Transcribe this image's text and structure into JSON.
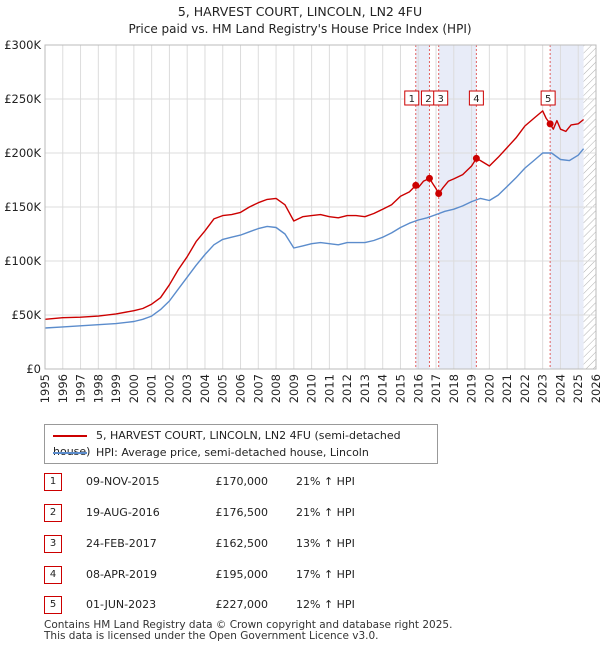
{
  "chart_data": {
    "type": "line",
    "title": "5, HARVEST COURT, LINCOLN, LN2 4FU",
    "subtitle": "Price paid vs. HM Land Registry's House Price Index (HPI)",
    "xlabel": "",
    "ylabel": "",
    "xlim": [
      1995,
      2026
    ],
    "ylim": [
      0,
      300000
    ],
    "y_ticks": [
      0,
      50000,
      100000,
      150000,
      200000,
      250000,
      300000
    ],
    "y_tick_labels": [
      "£0",
      "£50K",
      "£100K",
      "£150K",
      "£200K",
      "£250K",
      "£300K"
    ],
    "x_ticks": [
      1995,
      1996,
      1997,
      1998,
      1999,
      2000,
      2001,
      2002,
      2003,
      2004,
      2005,
      2006,
      2007,
      2008,
      2009,
      2010,
      2011,
      2012,
      2013,
      2014,
      2015,
      2016,
      2017,
      2018,
      2019,
      2020,
      2021,
      2022,
      2023,
      2024,
      2025,
      2026
    ],
    "grid": true,
    "colors": {
      "property": "#cc0000",
      "hpi": "#5b8ccc",
      "shade": "#e8ecf8",
      "hatch": "#b0b0b0"
    },
    "series": [
      {
        "name": "5, HARVEST COURT, LINCOLN, LN2 4FU (semi-detached house)",
        "color": "#cc0000",
        "x": [
          1995.0,
          1996.0,
          1997.0,
          1998.0,
          1999.0,
          2000.0,
          2000.5,
          2001.0,
          2001.5,
          2002.0,
          2002.5,
          2003.0,
          2003.5,
          2004.0,
          2004.5,
          2005.0,
          2005.5,
          2006.0,
          2006.5,
          2007.0,
          2007.5,
          2008.0,
          2008.5,
          2009.0,
          2009.5,
          2010.0,
          2010.5,
          2011.0,
          2011.5,
          2012.0,
          2012.5,
          2013.0,
          2013.5,
          2014.0,
          2014.5,
          2015.0,
          2015.5,
          2015.86,
          2016.0,
          2016.3,
          2016.63,
          2016.8,
          2017.0,
          2017.15,
          2017.4,
          2017.7,
          2018.0,
          2018.5,
          2019.0,
          2019.27,
          2019.5,
          2020.0,
          2020.5,
          2021.0,
          2021.5,
          2022.0,
          2022.5,
          2023.0,
          2023.2,
          2023.42,
          2023.6,
          2023.8,
          2024.0,
          2024.3,
          2024.6,
          2025.0,
          2025.3
        ],
        "y": [
          46000,
          47500,
          48000,
          49000,
          51000,
          54000,
          56000,
          60000,
          66000,
          78000,
          92000,
          104000,
          118000,
          128000,
          139000,
          142000,
          143000,
          145000,
          150000,
          154000,
          157000,
          158000,
          152000,
          137000,
          141000,
          142000,
          143000,
          141000,
          140000,
          142000,
          142000,
          141000,
          144000,
          148000,
          152000,
          160000,
          164000,
          170000,
          168000,
          174000,
          176500,
          172000,
          167000,
          162500,
          168000,
          174000,
          176000,
          180000,
          188000,
          195000,
          193000,
          188000,
          196000,
          205000,
          214000,
          225000,
          232000,
          239000,
          232000,
          227000,
          222000,
          230000,
          222000,
          220000,
          226000,
          227000,
          231000
        ]
      },
      {
        "name": "HPI: Average price, semi-detached house, Lincoln",
        "color": "#5b8ccc",
        "x": [
          1995.0,
          1996.0,
          1997.0,
          1998.0,
          1999.0,
          2000.0,
          2000.5,
          2001.0,
          2001.5,
          2002.0,
          2002.5,
          2003.0,
          2003.5,
          2004.0,
          2004.5,
          2005.0,
          2005.5,
          2006.0,
          2006.5,
          2007.0,
          2007.5,
          2008.0,
          2008.5,
          2009.0,
          2009.5,
          2010.0,
          2010.5,
          2011.0,
          2011.5,
          2012.0,
          2012.5,
          2013.0,
          2013.5,
          2014.0,
          2014.5,
          2015.0,
          2015.5,
          2016.0,
          2016.5,
          2017.0,
          2017.5,
          2018.0,
          2018.5,
          2019.0,
          2019.5,
          2020.0,
          2020.5,
          2021.0,
          2021.5,
          2022.0,
          2022.5,
          2023.0,
          2023.5,
          2024.0,
          2024.5,
          2025.0,
          2025.3
        ],
        "y": [
          38000,
          39000,
          40000,
          41000,
          42000,
          44000,
          46000,
          49000,
          55000,
          63000,
          74000,
          85000,
          96000,
          106000,
          115000,
          120000,
          122000,
          124000,
          127000,
          130000,
          132000,
          131000,
          125000,
          112000,
          114000,
          116000,
          117000,
          116000,
          115000,
          117000,
          117000,
          117000,
          119000,
          122000,
          126000,
          131000,
          135000,
          138000,
          140000,
          143000,
          146000,
          148000,
          151000,
          155000,
          158000,
          156000,
          161000,
          169000,
          177000,
          186000,
          193000,
          200000,
          200000,
          194000,
          193000,
          198000,
          204000
        ]
      }
    ],
    "sales": [
      {
        "num": "1",
        "x": 2015.86,
        "y": 170000
      },
      {
        "num": "2",
        "x": 2016.63,
        "y": 176500
      },
      {
        "num": "3",
        "x": 2017.15,
        "y": 162500
      },
      {
        "num": "4",
        "x": 2019.27,
        "y": 195000
      },
      {
        "num": "5",
        "x": 2023.42,
        "y": 227000
      }
    ],
    "shaded_ranges": [
      [
        2015.86,
        2016.63
      ],
      [
        2017.15,
        2019.27
      ],
      [
        2023.42,
        2025.3
      ]
    ],
    "hatched_range": [
      2025.3,
      2026
    ]
  },
  "legend": {
    "property": "5, HARVEST COURT, LINCOLN, LN2 4FU (semi-detached house)",
    "hpi": "HPI: Average price, semi-detached house, Lincoln"
  },
  "sales_table": [
    {
      "num": "1",
      "date": "09-NOV-2015",
      "price": "£170,000",
      "hpi": "21% ↑ HPI"
    },
    {
      "num": "2",
      "date": "19-AUG-2016",
      "price": "£176,500",
      "hpi": "21% ↑ HPI"
    },
    {
      "num": "3",
      "date": "24-FEB-2017",
      "price": "£162,500",
      "hpi": "13% ↑ HPI"
    },
    {
      "num": "4",
      "date": "08-APR-2019",
      "price": "£195,000",
      "hpi": "17% ↑ HPI"
    },
    {
      "num": "5",
      "date": "01-JUN-2023",
      "price": "£227,000",
      "hpi": "12% ↑ HPI"
    }
  ],
  "footer": {
    "line1": "Contains HM Land Registry data © Crown copyright and database right 2025.",
    "line2": "This data is licensed under the Open Government Licence v3.0."
  }
}
